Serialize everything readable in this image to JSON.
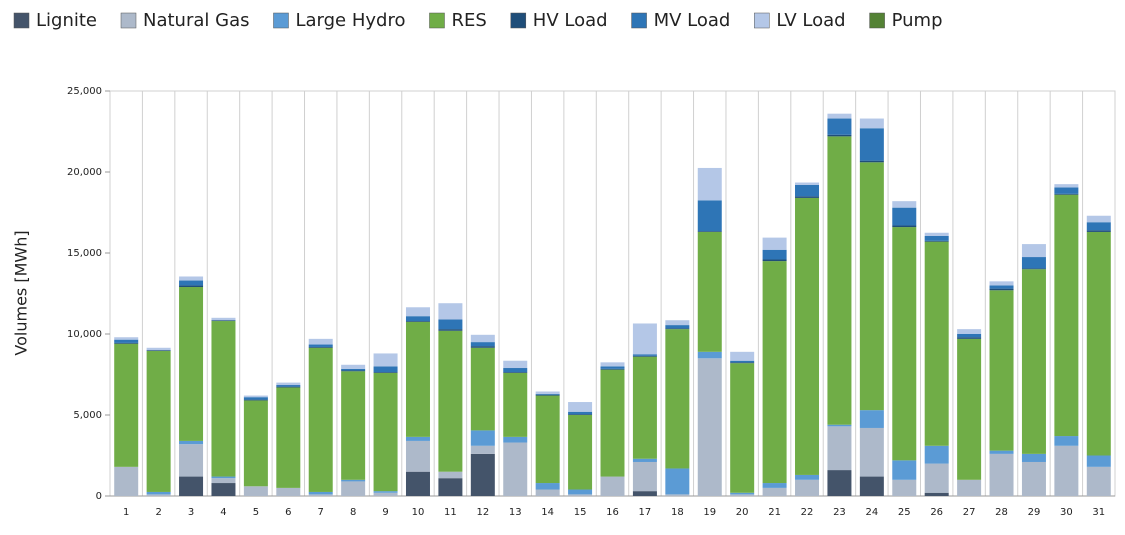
{
  "chart_data": {
    "type": "stacked_bar",
    "ylabel": "Volumes [MWh]",
    "categories": [
      "1",
      "2",
      "3",
      "4",
      "5",
      "6",
      "7",
      "8",
      "9",
      "10",
      "11",
      "12",
      "13",
      "14",
      "15",
      "16",
      "17",
      "18",
      "19",
      "20",
      "21",
      "22",
      "23",
      "24",
      "25",
      "26",
      "27",
      "28",
      "29",
      "30",
      "31"
    ],
    "series": [
      {
        "name": "Lignite",
        "color": "#44546a",
        "values": [
          0,
          0,
          1200,
          800,
          0,
          0,
          0,
          0,
          0,
          1500,
          1100,
          2600,
          0,
          0,
          0,
          0,
          300,
          0,
          0,
          0,
          0,
          0,
          1600,
          1200,
          0,
          200,
          0,
          0,
          0,
          0,
          0
        ]
      },
      {
        "name": "Natural Gas",
        "color": "#adb9ca",
        "values": [
          1800,
          100,
          2000,
          300,
          600,
          500,
          100,
          900,
          200,
          1900,
          400,
          500,
          3300,
          400,
          100,
          1200,
          1800,
          100,
          8500,
          100,
          500,
          1000,
          2700,
          3000,
          1000,
          1800,
          1000,
          2600,
          2100,
          3100,
          1800
        ]
      },
      {
        "name": "Large Hydro",
        "color": "#5b9bd5",
        "values": [
          0,
          150,
          200,
          100,
          0,
          0,
          150,
          100,
          100,
          250,
          0,
          950,
          350,
          400,
          300,
          0,
          200,
          1600,
          400,
          100,
          300,
          300,
          100,
          1100,
          1200,
          1100,
          0,
          200,
          500,
          600,
          700
        ]
      },
      {
        "name": "RES",
        "color": "#70ad47",
        "values": [
          7600,
          8700,
          9500,
          9600,
          5300,
          6200,
          8900,
          6700,
          7300,
          7100,
          8700,
          5100,
          3950,
          5400,
          4600,
          6600,
          6300,
          8600,
          7400,
          8000,
          13700,
          17100,
          17800,
          15300,
          14400,
          12600,
          8700,
          9900,
          11400,
          14900,
          13800
        ]
      },
      {
        "name": "HV Load",
        "color": "#1f4e79",
        "values": [
          50,
          50,
          100,
          50,
          50,
          50,
          50,
          50,
          50,
          50,
          100,
          100,
          50,
          50,
          50,
          50,
          50,
          50,
          50,
          50,
          100,
          100,
          100,
          100,
          100,
          50,
          100,
          100,
          50,
          50,
          100
        ]
      },
      {
        "name": "MV Load",
        "color": "#2e75b6",
        "values": [
          200,
          0,
          300,
          0,
          150,
          100,
          150,
          100,
          350,
          300,
          600,
          250,
          250,
          50,
          150,
          150,
          100,
          200,
          1900,
          100,
          600,
          700,
          1000,
          2000,
          1100,
          300,
          200,
          200,
          700,
          400,
          500
        ]
      },
      {
        "name": "LV Load",
        "color": "#b4c7e7",
        "values": [
          150,
          150,
          250,
          150,
          100,
          150,
          350,
          250,
          800,
          550,
          1000,
          450,
          450,
          150,
          600,
          250,
          1900,
          300,
          2000,
          550,
          750,
          150,
          300,
          600,
          400,
          200,
          300,
          250,
          800,
          200,
          400
        ]
      },
      {
        "name": "Pump",
        "color": "#548235",
        "values": [
          0,
          0,
          0,
          0,
          0,
          0,
          0,
          0,
          0,
          0,
          0,
          0,
          0,
          0,
          0,
          0,
          0,
          0,
          0,
          0,
          0,
          0,
          0,
          0,
          0,
          0,
          0,
          0,
          0,
          0,
          0
        ]
      }
    ],
    "ylim": [
      0,
      25000
    ],
    "yticks": [
      0,
      {
        "value": 5000,
        "label": "5,000"
      },
      {
        "value": 10000,
        "label": "10,000"
      },
      {
        "value": 15000,
        "label": "15,000"
      },
      {
        "value": 20000,
        "label": "20,000"
      },
      {
        "value": 25000,
        "label": "25,000"
      }
    ],
    "grid": true
  }
}
